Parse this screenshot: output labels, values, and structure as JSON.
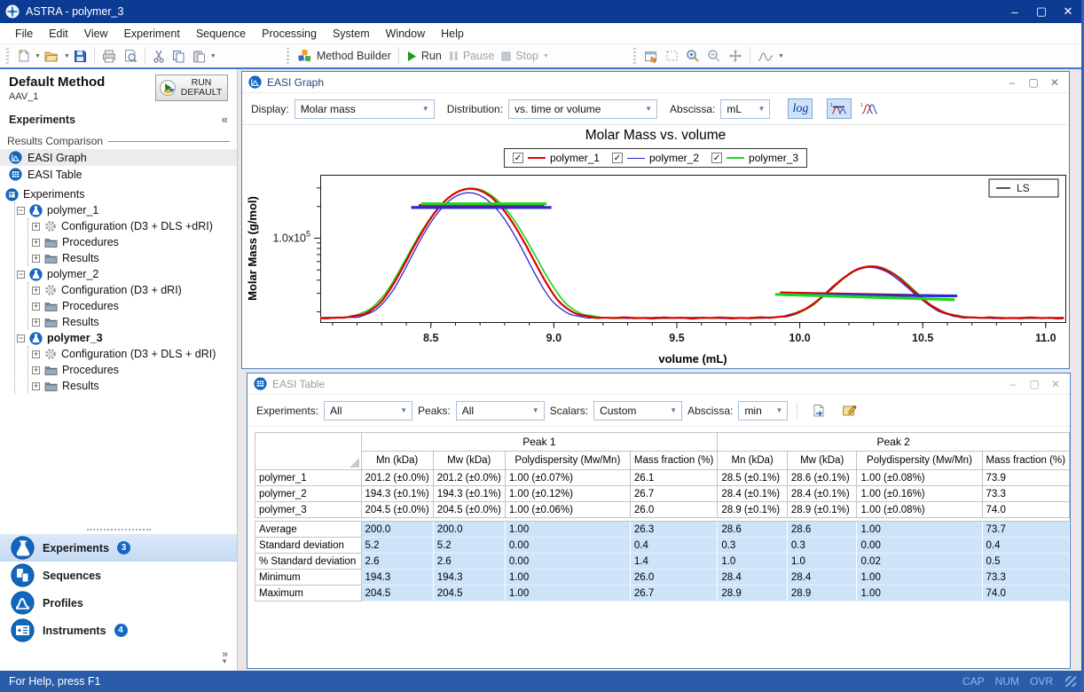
{
  "window": {
    "title": "ASTRA - polymer_3"
  },
  "menu": {
    "items": [
      "File",
      "Edit",
      "View",
      "Experiment",
      "Sequence",
      "Processing",
      "System",
      "Window",
      "Help"
    ]
  },
  "toolbar": {
    "method_builder": "Method Builder",
    "run": "Run",
    "pause": "Pause",
    "stop": "Stop"
  },
  "sidebar": {
    "method_title": "Default Method",
    "method_subtitle": "AAV_1",
    "run_default_label": "RUN DEFAULT",
    "section_header": "Experiments",
    "collapse_glyph": "«",
    "expand_glyph": "»",
    "results_comparison": {
      "label": "Results Comparison",
      "items": [
        {
          "label": "EASI Graph"
        },
        {
          "label": "EASI Table"
        }
      ]
    },
    "tree": {
      "root": "Experiments",
      "experiments": [
        {
          "label": "polymer_1",
          "bold": false,
          "children": [
            "Configuration (D3 + DLS +dRI)",
            "Procedures",
            "Results"
          ]
        },
        {
          "label": "polymer_2",
          "bold": false,
          "children": [
            "Configuration (D3 + dRI)",
            "Procedures",
            "Results"
          ]
        },
        {
          "label": "polymer_3",
          "bold": true,
          "children": [
            "Configuration (D3 + DLS + dRI)",
            "Procedures",
            "Results"
          ]
        }
      ]
    },
    "nav": [
      {
        "label": "Experiments",
        "badge": "3",
        "active": true,
        "icon": "flask-icon"
      },
      {
        "label": "Sequences",
        "badge": "",
        "active": false,
        "icon": "sequences-icon"
      },
      {
        "label": "Profiles",
        "badge": "",
        "active": false,
        "icon": "profiles-icon"
      },
      {
        "label": "Instruments",
        "badge": "4",
        "active": false,
        "icon": "instruments-icon"
      }
    ]
  },
  "graph_window": {
    "title": "EASI Graph",
    "display_label": "Display:",
    "display_value": "Molar mass",
    "distribution_label": "Distribution:",
    "distribution_value": "vs. time or volume",
    "abscissa_label": "Abscissa:",
    "abscissa_value": "mL",
    "log_button": "log"
  },
  "chart_data": {
    "type": "line",
    "title": "Molar Mass vs. volume",
    "xlabel": "volume (mL)",
    "ylabel": "Molar Mass (g/mol)",
    "x_range": [
      8.05,
      11.08
    ],
    "x_major_ticks": [
      8.5,
      9.0,
      9.5,
      10.0,
      10.5,
      11.0
    ],
    "x_minor_step": 0.1,
    "y_scale": "log",
    "y_range": [
      16000,
      400000
    ],
    "y_tick": {
      "label_base": "1.0x10",
      "label_exp": "5",
      "value": 100000
    },
    "inset_legend": "LS",
    "legend_position": "top-center",
    "series": [
      {
        "name": "polymer_1",
        "color": "#e30000",
        "checked": true
      },
      {
        "name": "polymer_2",
        "color": "#2a2ad2",
        "checked": true
      },
      {
        "name": "polymer_3",
        "color": "#1fd41f",
        "checked": true
      }
    ],
    "ls_trace": {
      "baseline": 17500,
      "peaks": [
        {
          "center": 8.66,
          "sigma": 0.135,
          "top": 295000
        },
        {
          "center": 10.29,
          "sigma": 0.125,
          "top": 54000
        }
      ]
    },
    "fit_lines": [
      {
        "peak": 1,
        "x_start": 8.44,
        "x_end": 8.97,
        "mass_start": 205000,
        "mass_end": 205000
      },
      {
        "peak": 2,
        "x_start": 9.93,
        "x_end": 10.62,
        "mass_start": 30500,
        "mass_end": 27500
      }
    ]
  },
  "table_window": {
    "title": "EASI Table",
    "filters": [
      {
        "label": "Experiments:",
        "value": "All"
      },
      {
        "label": "Peaks:",
        "value": "All"
      },
      {
        "label": "Scalars:",
        "value": "Custom"
      },
      {
        "label": "Abscissa:",
        "value": "min"
      }
    ]
  },
  "table": {
    "groups": [
      "Peak 1",
      "Peak 2"
    ],
    "columns": [
      "Mn (kDa)",
      "Mw (kDa)",
      "Polydispersity (Mw/Mn)",
      "Mass fraction (%)",
      "Mn (kDa)",
      "Mw (kDa)",
      "Polydispersity (Mw/Mn)",
      "Mass fraction (%)"
    ],
    "rows": [
      {
        "label": "polymer_1",
        "values": [
          "201.2 (±0.0%)",
          "201.2 (±0.0%)",
          "1.00 (±0.07%)",
          "26.1",
          "28.5 (±0.1%)",
          "28.6 (±0.1%)",
          "1.00 (±0.08%)",
          "73.9"
        ]
      },
      {
        "label": "polymer_2",
        "values": [
          "194.3 (±0.1%)",
          "194.3 (±0.1%)",
          "1.00 (±0.12%)",
          "26.7",
          "28.4 (±0.1%)",
          "28.4 (±0.1%)",
          "1.00 (±0.16%)",
          "73.3"
        ]
      },
      {
        "label": "polymer_3",
        "values": [
          "204.5 (±0.0%)",
          "204.5 (±0.0%)",
          "1.00 (±0.06%)",
          "26.0",
          "28.9 (±0.1%)",
          "28.9 (±0.1%)",
          "1.00 (±0.08%)",
          "74.0"
        ]
      }
    ],
    "stats": [
      {
        "label": "Average",
        "values": [
          "200.0",
          "200.0",
          "1.00",
          "26.3",
          "28.6",
          "28.6",
          "1.00",
          "73.7"
        ]
      },
      {
        "label": "Standard deviation",
        "values": [
          "5.2",
          "5.2",
          "0.00",
          "0.4",
          "0.3",
          "0.3",
          "0.00",
          "0.4"
        ]
      },
      {
        "label": "% Standard deviation",
        "values": [
          "2.6",
          "2.6",
          "0.00",
          "1.4",
          "1.0",
          "1.0",
          "0.02",
          "0.5"
        ]
      },
      {
        "label": "Minimum",
        "values": [
          "194.3",
          "194.3",
          "1.00",
          "26.0",
          "28.4",
          "28.4",
          "1.00",
          "73.3"
        ]
      },
      {
        "label": "Maximum",
        "values": [
          "204.5",
          "204.5",
          "1.00",
          "26.7",
          "28.9",
          "28.9",
          "1.00",
          "74.0"
        ]
      }
    ]
  },
  "statusbar": {
    "help": "For Help, press F1",
    "indicators": [
      "CAP",
      "NUM",
      "OVR"
    ]
  }
}
